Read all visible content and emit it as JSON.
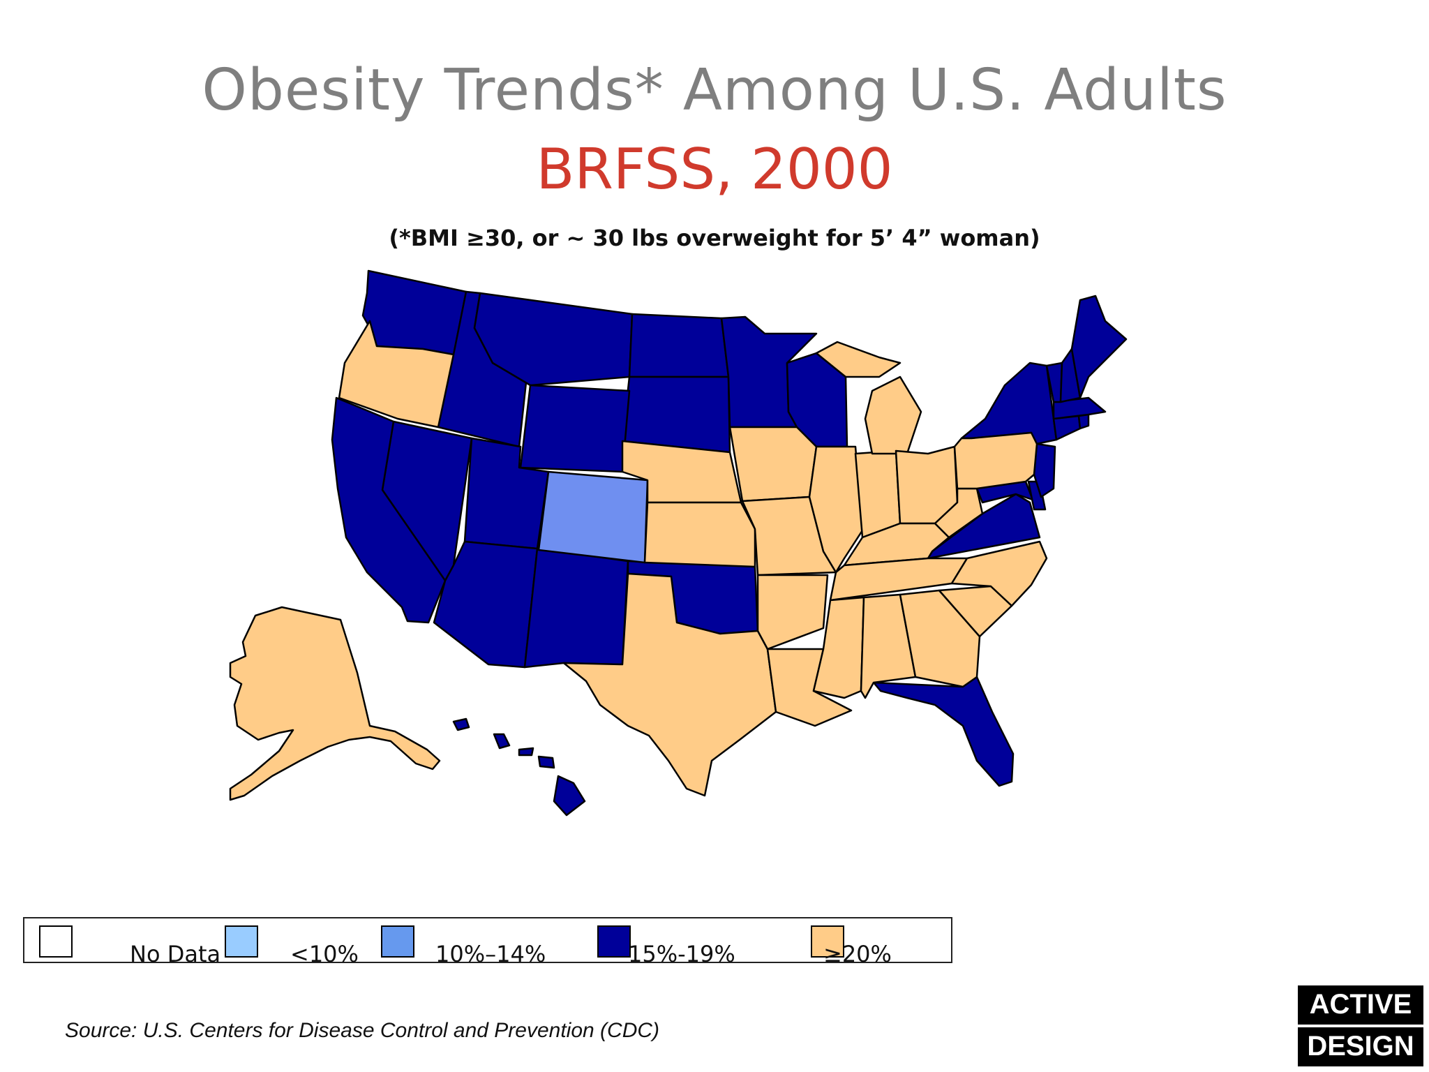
{
  "title": "Obesity Trends* Among U.S. Adults",
  "subtitle": "BRFSS, 2000",
  "note": "(*BMI ≥30, or ~ 30 lbs overweight for 5’ 4” woman)",
  "colors": {
    "no_data": "#ffffff",
    "lt10": "#99ccff",
    "p10_14": "#6699ee",
    "p15_19": "#000099",
    "ge20": "#ffcc88",
    "colorado": "#6f8ff0",
    "title": "#7f7f7f",
    "subtitle": "#d03a2c"
  },
  "legend": [
    {
      "label": "No Data",
      "color": "#ffffff"
    },
    {
      "label": "<10%",
      "color": "#99ccff"
    },
    {
      "label": "10%–14%",
      "color": "#6699ee"
    },
    {
      "label": "15%-19%",
      "color": "#000099"
    },
    {
      "label": "≥20%",
      "color": "#ffcc88"
    }
  ],
  "states": {
    "15-19": [
      "WA",
      "ID",
      "MT",
      "ND",
      "SD",
      "WY",
      "MN",
      "WI",
      "NV",
      "UT",
      "CA",
      "AZ",
      "NM",
      "OK",
      "VA",
      "MD",
      "DE",
      "NJ",
      "NY",
      "CT",
      "RI",
      "MA",
      "VT",
      "NH",
      "ME",
      "FL",
      "HI"
    ],
    "10-14": [
      "CO"
    ],
    ">=20": [
      "OR",
      "NE",
      "KS",
      "TX",
      "IA",
      "MO",
      "AR",
      "LA",
      "IL",
      "IN",
      "MI",
      "OH",
      "KY",
      "TN",
      "MS",
      "AL",
      "GA",
      "SC",
      "NC",
      "WV",
      "PA",
      "AK"
    ]
  },
  "source": "Source: U.S. Centers for Disease Control and Prevention (CDC)",
  "brand": {
    "line1": "ACTIVE",
    "line2": "DESIGN"
  }
}
